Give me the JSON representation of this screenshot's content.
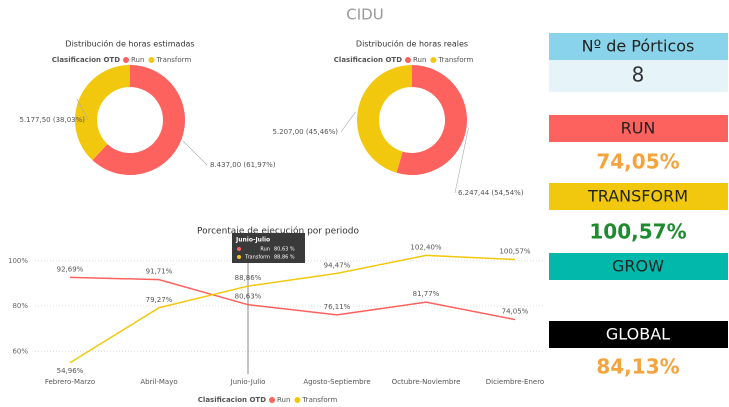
{
  "title": "CIDU",
  "chart_data": [
    {
      "type": "donut",
      "title": "Distribución de horas estimadas",
      "legend_title": "Clasificacion OTD",
      "categories": [
        "Run",
        "Transform"
      ],
      "colors": [
        "#fd625e",
        "#f2c80f"
      ],
      "values": [
        8437.0,
        5177.5
      ],
      "value_labels": [
        "8.437,00 (61,97%)",
        "5.177,50 (38,03%)"
      ]
    },
    {
      "type": "donut",
      "title": "Distribución de horas reales",
      "legend_title": "Clasificacion OTD",
      "categories": [
        "Run",
        "Transform"
      ],
      "colors": [
        "#fd625e",
        "#f2c80f"
      ],
      "values": [
        6247.44,
        5207.0
      ],
      "value_labels": [
        "6.247,44 (54,54%)",
        "5.207,00 (45,46%)"
      ]
    },
    {
      "type": "line",
      "title": "Porcentaje de ejecución por periodo",
      "legend_title": "Clasificacion OTD",
      "categories": [
        "Febrero-Marzo",
        "Abril-Mayo",
        "Junio-Julio",
        "Agosto-Septiembre",
        "Octubre-Noviembre",
        "Diciembre-Enero"
      ],
      "series": [
        {
          "name": "Run",
          "color": "#fd625e",
          "values": [
            92.69,
            91.71,
            80.63,
            76.11,
            81.77,
            74.05
          ],
          "value_labels": [
            "92,69%",
            "91,71%",
            "80,63%",
            "76,11%",
            "81,77%",
            "74,05%"
          ]
        },
        {
          "name": "Transform",
          "color": "#f2c80f",
          "values": [
            54.96,
            79.27,
            88.86,
            94.47,
            102.4,
            100.57
          ],
          "value_labels": [
            "54,96%",
            "79,27%",
            "88,86%",
            "94,47%",
            "102,40%",
            "100,57%"
          ]
        }
      ],
      "ylim": [
        50,
        107
      ],
      "yticks": [
        {
          "value": 60,
          "label": "60%"
        },
        {
          "value": 80,
          "label": "80%"
        },
        {
          "value": 100,
          "label": "100%"
        }
      ],
      "grid": true,
      "tooltip": {
        "category": "Junio-Julio",
        "values": [
          80.63,
          88.86
        ],
        "value_labels": [
          "80,63 %",
          "88,86 %"
        ]
      }
    }
  ],
  "cards": [
    {
      "label": "Nº de Pórticos",
      "value": "8",
      "color": "#8ad4eb",
      "value_color": "#333333"
    },
    {
      "label": "RUN",
      "value": "74,05%",
      "color": "#fd625e",
      "value_color": "#f5a33c"
    },
    {
      "label": "TRANSFORM",
      "value": "100,57%",
      "color": "#f2c80f",
      "value_color": "#1e8c2e"
    },
    {
      "label": "GROW",
      "color": "#01b8aa"
    },
    {
      "label": "GLOBAL",
      "value": "84,13%",
      "color": "#000000",
      "value_color": "#f5a33c"
    }
  ]
}
